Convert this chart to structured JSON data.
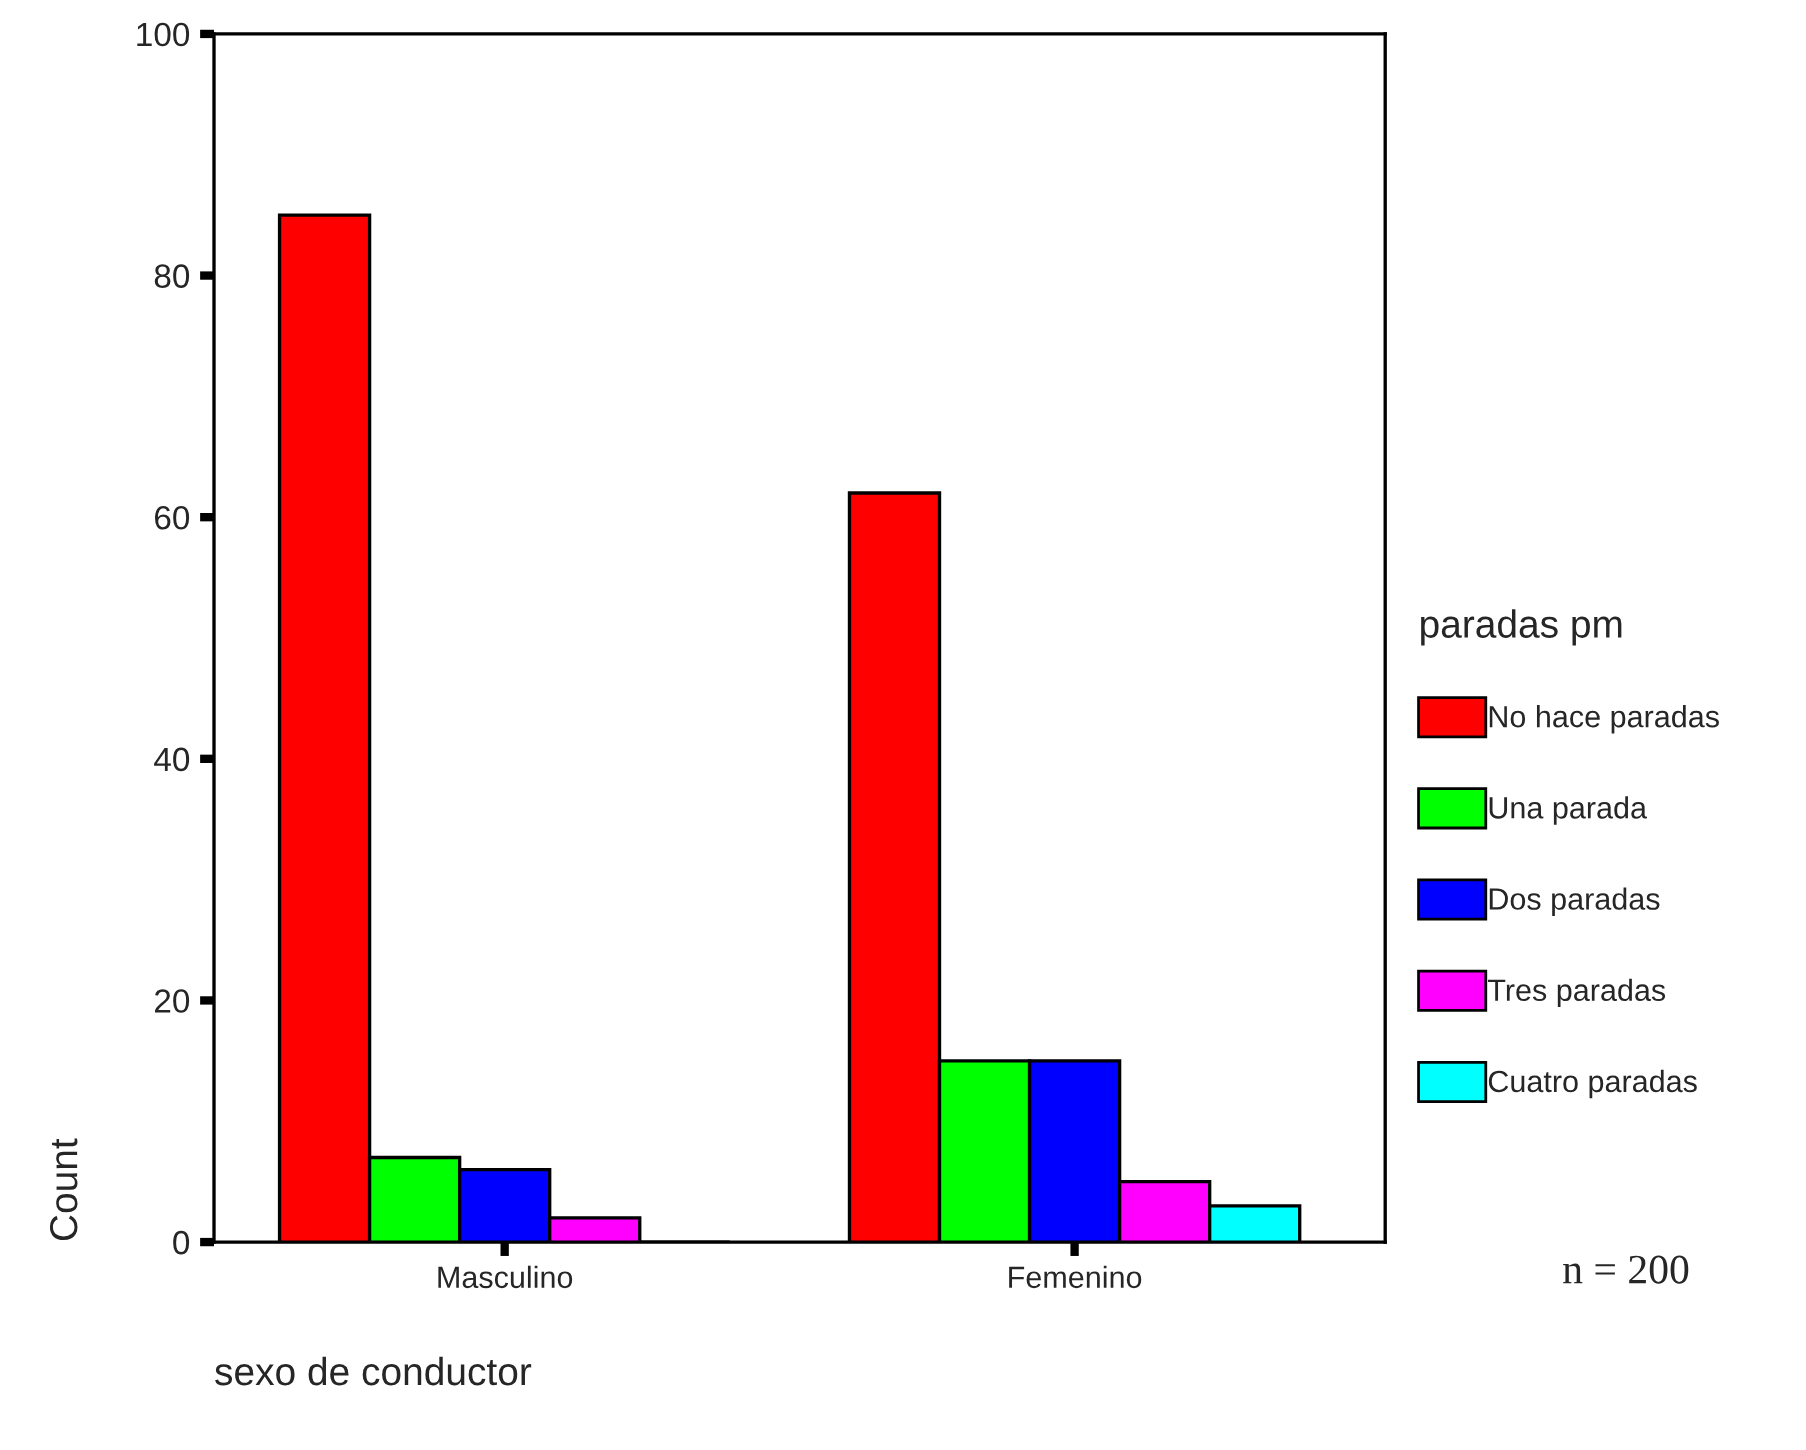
{
  "chart_data": {
    "type": "bar",
    "xlabel": "sexo de conductor",
    "ylabel": "Count",
    "legend_title": "paradas pm",
    "categories": [
      "Masculino",
      "Femenino"
    ],
    "series": [
      {
        "name": "No hace paradas",
        "color": "#ff0000",
        "values": [
          85,
          62
        ]
      },
      {
        "name": "Una parada",
        "color": "#00ff00",
        "values": [
          7,
          15
        ]
      },
      {
        "name": "Dos paradas",
        "color": "#0000ff",
        "values": [
          6,
          15
        ]
      },
      {
        "name": "Tres paradas",
        "color": "#ff00ff",
        "values": [
          2,
          5
        ]
      },
      {
        "name": "Cuatro paradas",
        "color": "#00ffff",
        "values": [
          0,
          3
        ]
      }
    ],
    "ylim": [
      0,
      100
    ],
    "yticks": [
      0,
      20,
      40,
      60,
      80,
      100
    ],
    "grid": false,
    "legend": "right",
    "annotations": [
      "n = 200"
    ]
  }
}
